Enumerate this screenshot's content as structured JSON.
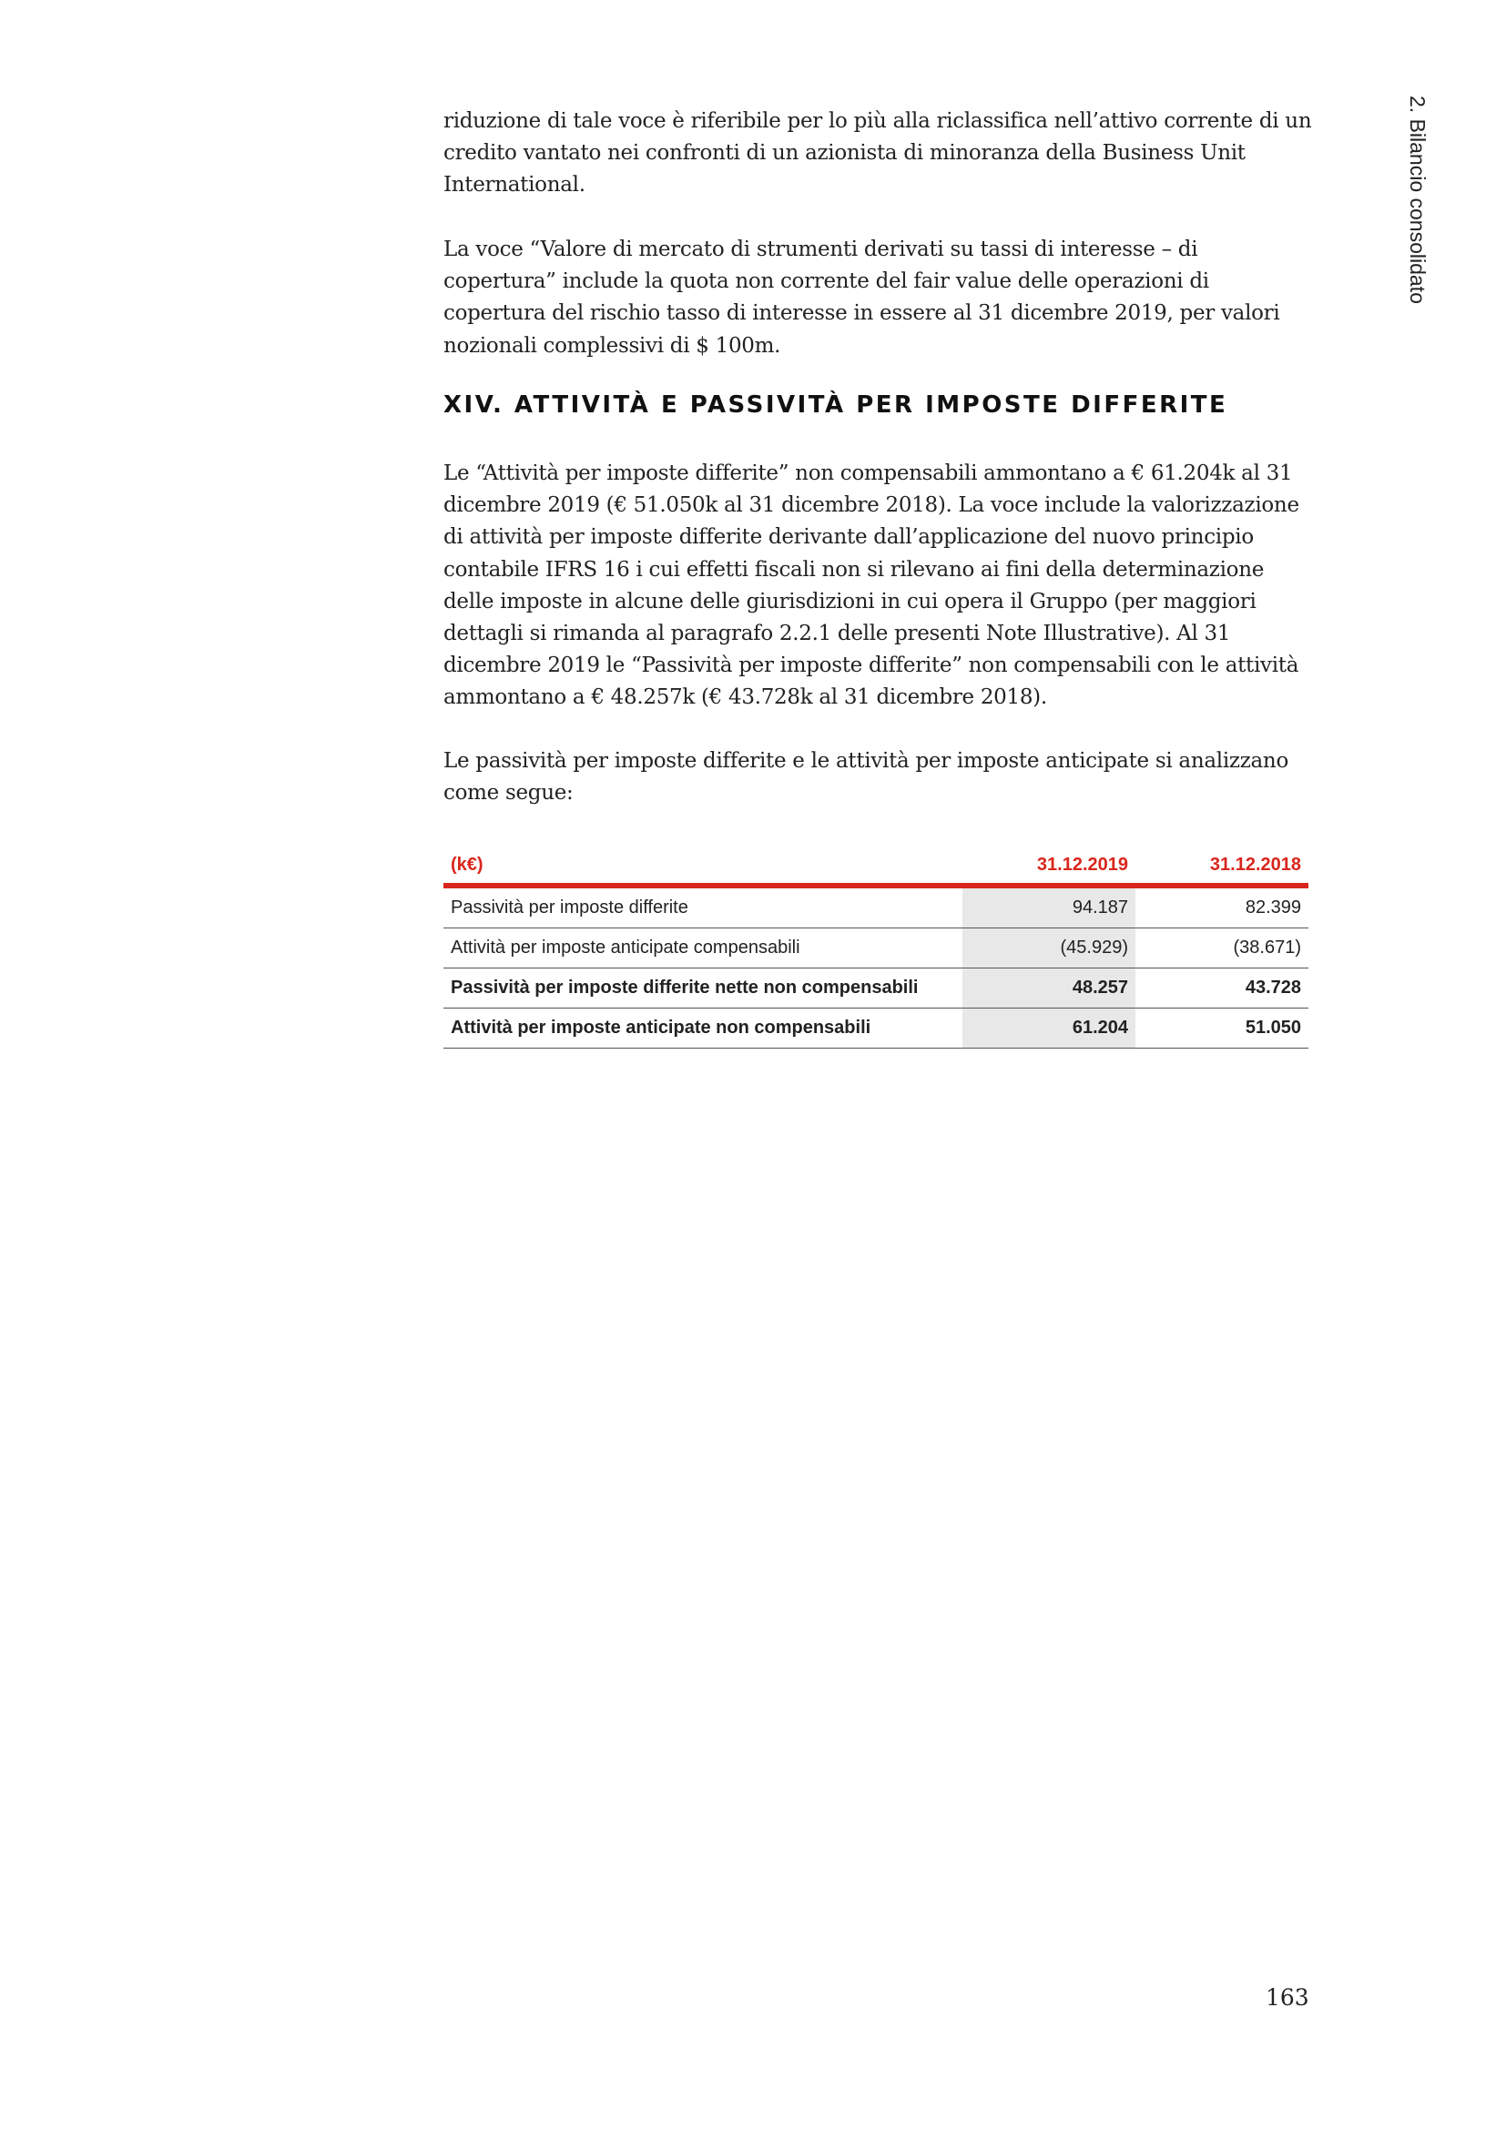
{
  "side_header": "2. Bilancio consolidato",
  "paragraphs": [
    "riduzione di tale voce è riferibile per lo più alla riclassifica nell’attivo corrente di un credito vantato nei confronti di un azionista di minoranza della Business Unit International.",
    "La voce “Valore di mercato di strumenti derivati su tassi di interesse – di copertura” include la quota non corrente del fair value delle operazioni di copertura del rischio tasso di interesse in essere al 31 dicembre 2019, per valori nozionali complessivi di $ 100m."
  ],
  "section": {
    "title": "XIV. ATTIVITÀ E PASSIVITÀ PER IMPOSTE DIFFERITE",
    "paragraphs": [
      "Le “Attività per imposte differite” non compensabili ammontano a € 61.204k al 31 dicembre 2019 (€ 51.050k al 31 dicembre 2018). La voce include la valorizzazione di attività per imposte differite derivante dall’applicazione del nuovo principio contabile IFRS 16 i cui effetti fiscali non si rilevano ai fini della determinazione delle imposte in alcune delle giurisdizioni in cui opera il Gruppo (per maggiori dettagli si rimanda al paragrafo 2.2.1 delle presenti Note Illustrative). Al 31 dicembre 2019 le “Passività per imposte differite” non compensabili con le attività ammontano a € 48.257k (€ 43.728k al 31 dicembre 2018).",
      "Le passività per imposte differite e le attività per imposte anticipate si analizzano come segue:"
    ]
  },
  "table": {
    "headers": [
      "(k€)",
      "31.12.2019",
      "31.12.2018"
    ],
    "rows": [
      {
        "label": "Passività per imposte differite",
        "v2019": "94.187",
        "v2018": "82.399"
      },
      {
        "label": "Attività per imposte anticipate compensabili",
        "v2019": "(45.929)",
        "v2018": "(38.671)"
      },
      {
        "label": "Passività per imposte differite nette non compensabili",
        "v2019": "48.257",
        "v2018": "43.728"
      },
      {
        "label": "Attività per imposte anticipate non compensabili",
        "v2019": "61.204",
        "v2018": "51.050"
      }
    ],
    "accent_color": "#d9261c"
  },
  "page_number": "163"
}
